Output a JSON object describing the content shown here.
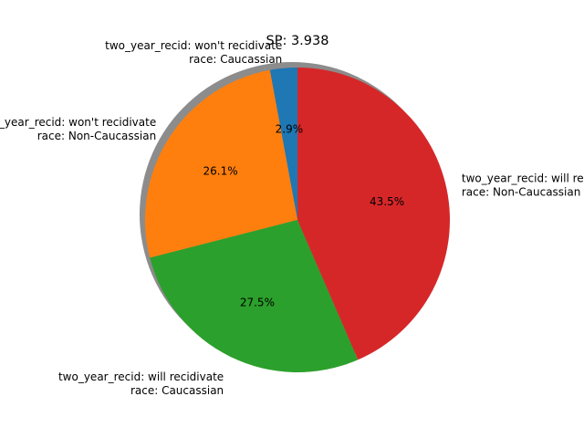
{
  "chart_data": {
    "type": "pie",
    "title": "SP: 3.938",
    "start_angle_deg": 90,
    "direction": "counterclockwise",
    "shadow": true,
    "slices": [
      {
        "label_line1": "two_year_recid: won't recidivate",
        "label_line2": "race: Caucassian",
        "value": 2.9,
        "pct_label": "2.9%",
        "color": "#1f77b4"
      },
      {
        "label_line1": "two_year_recid: won't recidivate",
        "label_line2": "race: Non-Caucassian",
        "value": 26.1,
        "pct_label": "26.1%",
        "color": "#ff7f0e"
      },
      {
        "label_line1": "two_year_recid: will recidivate",
        "label_line2": "race: Caucassian",
        "value": 27.5,
        "pct_label": "27.5%",
        "color": "#2ca02c"
      },
      {
        "label_line1": "two_year_recid: will recidivate",
        "label_line2": "race: Non-Caucassian",
        "value": 43.5,
        "pct_label": "43.5%",
        "color": "#d62728"
      }
    ]
  }
}
